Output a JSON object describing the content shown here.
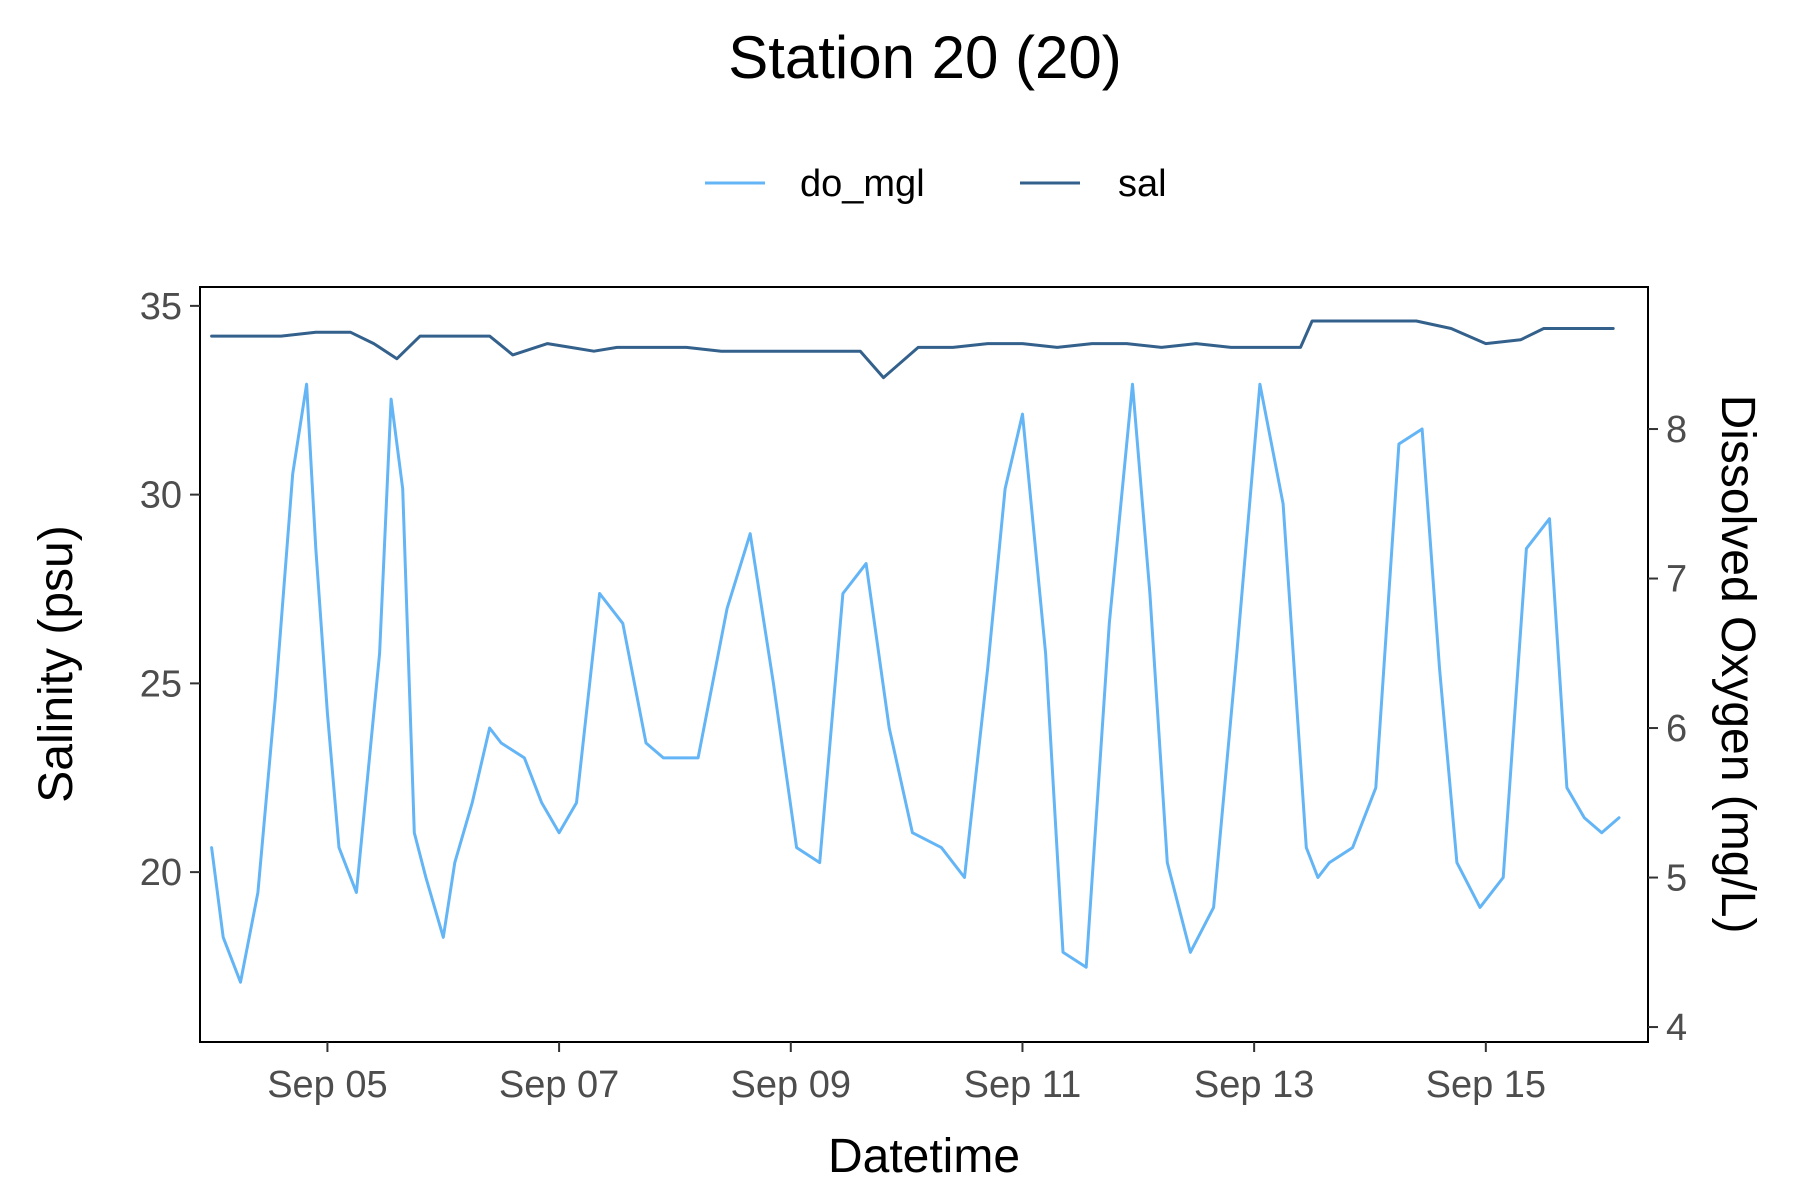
{
  "chart_data": {
    "type": "line",
    "title": "Station 20 (20)",
    "xlabel": "Datetime",
    "ylabel": "Salinity (psu)",
    "y2label": "Dissolved Oxygen (mg/L)",
    "x_ticks": [
      "Sep 05",
      "Sep 07",
      "Sep 09",
      "Sep 11",
      "Sep 13",
      "Sep 15"
    ],
    "x_range_days": [
      3.9,
      16.4
    ],
    "y_ticks": [
      "20",
      "25",
      "30",
      "35"
    ],
    "y2_ticks": [
      "4",
      "5",
      "6",
      "7",
      "8"
    ],
    "ylim": [
      15.5,
      35.5
    ],
    "y2lim": [
      3.9,
      8.95
    ],
    "grid": false,
    "legend_position": "top",
    "series": [
      {
        "name": "do_mgl",
        "axis": "right",
        "color": "#64B5F6",
        "x": [
          4.0,
          4.1,
          4.25,
          4.4,
          4.55,
          4.7,
          4.82,
          4.9,
          5.0,
          5.1,
          5.25,
          5.45,
          5.55,
          5.65,
          5.75,
          5.85,
          6.0,
          6.1,
          6.25,
          6.4,
          6.5,
          6.7,
          6.85,
          7.0,
          7.15,
          7.35,
          7.55,
          7.75,
          7.9,
          8.2,
          8.45,
          8.65,
          8.85,
          9.05,
          9.25,
          9.45,
          9.65,
          9.85,
          10.05,
          10.3,
          10.5,
          10.7,
          10.85,
          11.0,
          11.2,
          11.35,
          11.55,
          11.75,
          11.95,
          12.1,
          12.25,
          12.45,
          12.65,
          12.85,
          13.05,
          13.25,
          13.45,
          13.55,
          13.65,
          13.85,
          14.05,
          14.25,
          14.45,
          14.6,
          14.75,
          14.95,
          15.15,
          15.35,
          15.55,
          15.7,
          15.85,
          16.0,
          16.15
        ],
        "y": [
          5.2,
          4.6,
          4.3,
          4.9,
          6.2,
          7.7,
          8.3,
          7.2,
          6.1,
          5.2,
          4.9,
          6.5,
          8.2,
          7.6,
          5.3,
          5.0,
          4.6,
          5.1,
          5.5,
          6.0,
          5.9,
          5.8,
          5.5,
          5.3,
          5.5,
          6.9,
          6.7,
          5.9,
          5.8,
          5.8,
          6.8,
          7.3,
          6.3,
          5.2,
          5.1,
          6.9,
          7.1,
          6.0,
          5.3,
          5.2,
          5.0,
          6.4,
          7.6,
          8.1,
          6.5,
          4.5,
          4.4,
          6.7,
          8.3,
          6.9,
          5.1,
          4.5,
          4.8,
          6.5,
          8.3,
          7.5,
          5.2,
          5.0,
          5.1,
          5.2,
          5.6,
          7.9,
          8.0,
          6.4,
          5.1,
          4.8,
          5.0,
          7.2,
          7.4,
          5.6,
          5.4,
          5.3,
          5.4
        ]
      },
      {
        "name": "sal",
        "axis": "left",
        "color": "#34618C",
        "x": [
          4.0,
          4.3,
          4.6,
          4.9,
          5.2,
          5.4,
          5.6,
          5.8,
          6.1,
          6.4,
          6.6,
          6.9,
          7.1,
          7.3,
          7.5,
          7.8,
          8.1,
          8.4,
          8.7,
          9.0,
          9.3,
          9.6,
          9.8,
          10.1,
          10.4,
          10.7,
          11.0,
          11.3,
          11.6,
          11.9,
          12.2,
          12.5,
          12.8,
          13.1,
          13.4,
          13.5,
          13.8,
          14.1,
          14.4,
          14.7,
          15.0,
          15.3,
          15.5,
          15.8,
          16.1
        ],
        "y": [
          34.2,
          34.2,
          34.2,
          34.3,
          34.3,
          34.0,
          33.6,
          34.2,
          34.2,
          34.2,
          33.7,
          34.0,
          33.9,
          33.8,
          33.9,
          33.9,
          33.9,
          33.8,
          33.8,
          33.8,
          33.8,
          33.8,
          33.1,
          33.9,
          33.9,
          34.0,
          34.0,
          33.9,
          34.0,
          34.0,
          33.9,
          34.0,
          33.9,
          33.9,
          33.9,
          34.6,
          34.6,
          34.6,
          34.6,
          34.4,
          34.0,
          34.1,
          34.4,
          34.4,
          34.4
        ]
      }
    ]
  }
}
